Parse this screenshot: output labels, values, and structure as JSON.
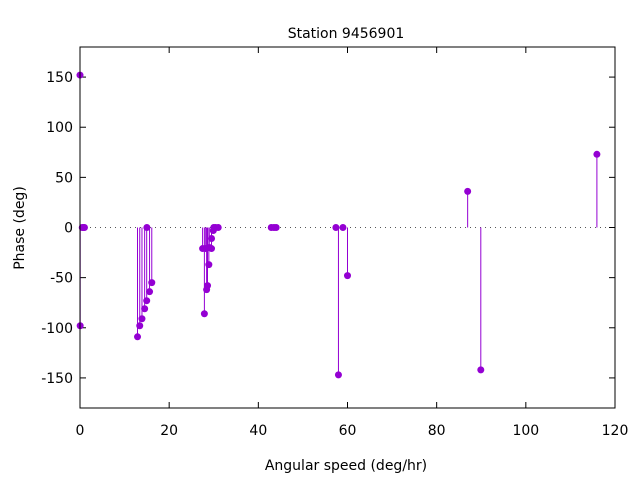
{
  "chart_data": {
    "type": "scatter",
    "style": "impulses-with-points",
    "title": "Station 9456901",
    "xlabel": "Angular speed (deg/hr)",
    "ylabel": "Phase (deg)",
    "xlim": [
      0,
      120
    ],
    "ylim": [
      -180,
      180
    ],
    "xticks": [
      0,
      20,
      40,
      60,
      80,
      100,
      120
    ],
    "yticks": [
      -150,
      -100,
      -50,
      0,
      50,
      100,
      150
    ],
    "zero_line": true,
    "grid": false,
    "legend": "none",
    "color": "#9400d3",
    "points": [
      {
        "x": 0.0,
        "y": 152
      },
      {
        "x": 0.04,
        "y": -98
      },
      {
        "x": 0.5,
        "y": 0
      },
      {
        "x": 0.8,
        "y": 0
      },
      {
        "x": 1.0,
        "y": 0
      },
      {
        "x": 12.9,
        "y": -109
      },
      {
        "x": 13.4,
        "y": -98
      },
      {
        "x": 13.9,
        "y": -91
      },
      {
        "x": 14.5,
        "y": -81
      },
      {
        "x": 14.96,
        "y": -73
      },
      {
        "x": 15.0,
        "y": 0
      },
      {
        "x": 15.6,
        "y": -64
      },
      {
        "x": 16.1,
        "y": -55
      },
      {
        "x": 27.5,
        "y": -21
      },
      {
        "x": 27.9,
        "y": -86
      },
      {
        "x": 28.2,
        "y": -21
      },
      {
        "x": 28.4,
        "y": -62
      },
      {
        "x": 28.6,
        "y": -58
      },
      {
        "x": 28.9,
        "y": -37
      },
      {
        "x": 29.0,
        "y": -20
      },
      {
        "x": 29.5,
        "y": -11
      },
      {
        "x": 29.5,
        "y": -21
      },
      {
        "x": 29.9,
        "y": -3
      },
      {
        "x": 30.0,
        "y": 0
      },
      {
        "x": 30.4,
        "y": 0
      },
      {
        "x": 31.0,
        "y": 0
      },
      {
        "x": 42.9,
        "y": 0
      },
      {
        "x": 43.5,
        "y": 0
      },
      {
        "x": 44.0,
        "y": 0
      },
      {
        "x": 57.4,
        "y": 0
      },
      {
        "x": 57.97,
        "y": -147
      },
      {
        "x": 58.98,
        "y": 0
      },
      {
        "x": 60.0,
        "y": -48
      },
      {
        "x": 86.95,
        "y": 36
      },
      {
        "x": 89.9,
        "y": -142
      },
      {
        "x": 115.94,
        "y": 73
      }
    ]
  }
}
